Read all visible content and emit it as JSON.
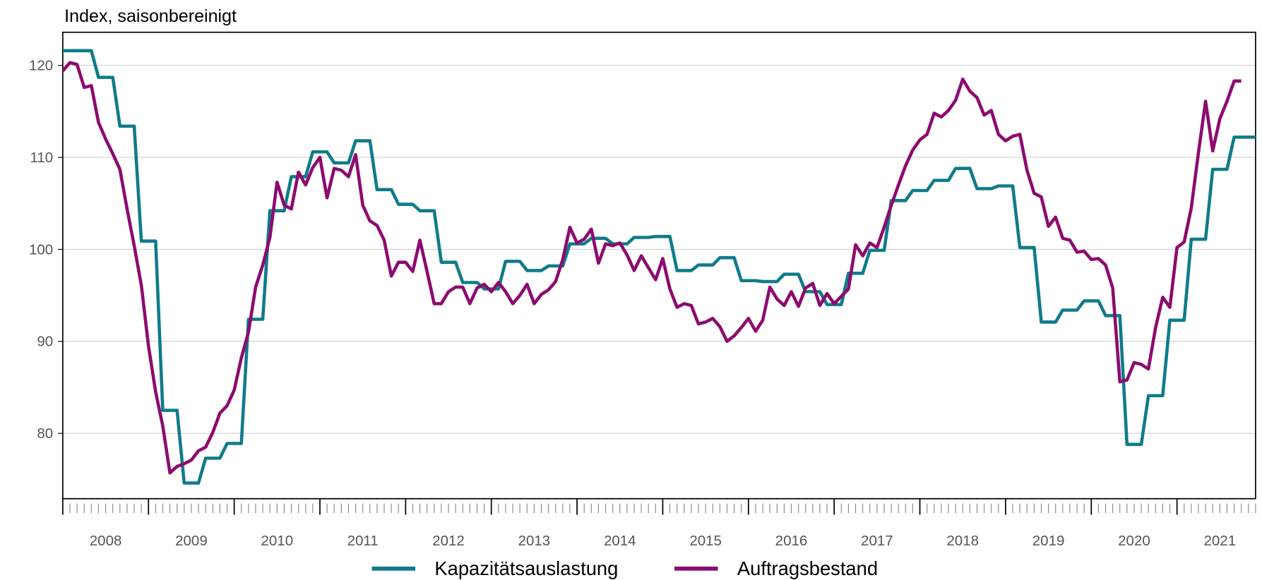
{
  "chart_data": {
    "type": "line",
    "title": "Index, saisonbereinigt",
    "x": [
      "2008-01",
      "2008-02",
      "2008-03",
      "2008-04",
      "2008-05",
      "2008-06",
      "2008-07",
      "2008-08",
      "2008-09",
      "2008-10",
      "2008-11",
      "2008-12",
      "2009-01",
      "2009-02",
      "2009-03",
      "2009-04",
      "2009-05",
      "2009-06",
      "2009-07",
      "2009-08",
      "2009-09",
      "2009-10",
      "2009-11",
      "2009-12",
      "2010-01",
      "2010-02",
      "2010-03",
      "2010-04",
      "2010-05",
      "2010-06",
      "2010-07",
      "2010-08",
      "2010-09",
      "2010-10",
      "2010-11",
      "2010-12",
      "2011-01",
      "2011-02",
      "2011-03",
      "2011-04",
      "2011-05",
      "2011-06",
      "2011-07",
      "2011-08",
      "2011-09",
      "2011-10",
      "2011-11",
      "2011-12",
      "2012-01",
      "2012-02",
      "2012-03",
      "2012-04",
      "2012-05",
      "2012-06",
      "2012-07",
      "2012-08",
      "2012-09",
      "2012-10",
      "2012-11",
      "2012-12",
      "2013-01",
      "2013-02",
      "2013-03",
      "2013-04",
      "2013-05",
      "2013-06",
      "2013-07",
      "2013-08",
      "2013-09",
      "2013-10",
      "2013-11",
      "2013-12",
      "2014-01",
      "2014-02",
      "2014-03",
      "2014-04",
      "2014-05",
      "2014-06",
      "2014-07",
      "2014-08",
      "2014-09",
      "2014-10",
      "2014-11",
      "2014-12",
      "2015-01",
      "2015-02",
      "2015-03",
      "2015-04",
      "2015-05",
      "2015-06",
      "2015-07",
      "2015-08",
      "2015-09",
      "2015-10",
      "2015-11",
      "2015-12",
      "2016-01",
      "2016-02",
      "2016-03",
      "2016-04",
      "2016-05",
      "2016-06",
      "2016-07",
      "2016-08",
      "2016-09",
      "2016-10",
      "2016-11",
      "2016-12",
      "2017-01",
      "2017-02",
      "2017-03",
      "2017-04",
      "2017-05",
      "2017-06",
      "2017-07",
      "2017-08",
      "2017-09",
      "2017-10",
      "2017-11",
      "2017-12",
      "2018-01",
      "2018-02",
      "2018-03",
      "2018-04",
      "2018-05",
      "2018-06",
      "2018-07",
      "2018-08",
      "2018-09",
      "2018-10",
      "2018-11",
      "2018-12",
      "2019-01",
      "2019-02",
      "2019-03",
      "2019-04",
      "2019-05",
      "2019-06",
      "2019-07",
      "2019-08",
      "2019-09",
      "2019-10",
      "2019-11",
      "2019-12",
      "2020-01",
      "2020-02",
      "2020-03",
      "2020-04",
      "2020-05",
      "2020-06",
      "2020-07",
      "2020-08",
      "2020-09",
      "2020-10",
      "2020-11",
      "2020-12",
      "2021-01",
      "2021-02",
      "2021-03",
      "2021-04",
      "2021-05",
      "2021-06",
      "2021-07",
      "2021-08",
      "2021-09",
      "2021-10",
      "2021-11",
      "2021-12"
    ],
    "series": [
      {
        "name": "Kapazitätsauslastung",
        "color": "#0f7b8a",
        "values": [
          121.6,
          121.6,
          121.6,
          121.6,
          121.6,
          118.7,
          118.7,
          118.7,
          113.4,
          113.4,
          113.4,
          100.9,
          100.9,
          100.9,
          82.5,
          82.5,
          82.5,
          74.6,
          74.6,
          74.6,
          77.3,
          77.3,
          77.3,
          78.9,
          78.9,
          78.9,
          92.4,
          92.4,
          92.4,
          104.2,
          104.2,
          104.2,
          107.9,
          107.9,
          107.9,
          110.6,
          110.6,
          110.6,
          109.4,
          109.4,
          109.4,
          111.8,
          111.8,
          111.8,
          106.5,
          106.5,
          106.5,
          104.9,
          104.9,
          104.9,
          104.2,
          104.2,
          104.2,
          98.6,
          98.6,
          98.6,
          96.4,
          96.4,
          96.4,
          95.7,
          95.7,
          95.7,
          98.7,
          98.7,
          98.7,
          97.7,
          97.7,
          97.7,
          98.2,
          98.2,
          98.2,
          100.6,
          100.6,
          100.6,
          101.2,
          101.2,
          101.2,
          100.6,
          100.6,
          100.6,
          101.3,
          101.3,
          101.3,
          101.4,
          101.4,
          101.4,
          97.7,
          97.7,
          97.7,
          98.3,
          98.3,
          98.3,
          99.1,
          99.1,
          99.1,
          96.6,
          96.6,
          96.6,
          96.5,
          96.5,
          96.5,
          97.3,
          97.3,
          97.3,
          95.4,
          95.4,
          95.4,
          94,
          94,
          94,
          97.4,
          97.4,
          97.4,
          99.9,
          99.9,
          99.9,
          105.3,
          105.3,
          105.3,
          106.4,
          106.4,
          106.4,
          107.5,
          107.5,
          107.5,
          108.8,
          108.8,
          108.8,
          106.6,
          106.6,
          106.6,
          106.9,
          106.9,
          106.9,
          100.2,
          100.2,
          100.2,
          92.1,
          92.1,
          92.1,
          93.4,
          93.4,
          93.4,
          94.4,
          94.4,
          94.4,
          92.8,
          92.8,
          92.8,
          78.8,
          78.8,
          78.8,
          84.1,
          84.1,
          84.1,
          92.3,
          92.3,
          92.3,
          101.1,
          101.1,
          101.1,
          108.7,
          108.7,
          108.7,
          112.2,
          112.2,
          112.2,
          112.2
        ]
      },
      {
        "name": "Auftragsbestand",
        "color": "#8c0b6f",
        "values": [
          119.4,
          120.3,
          120.1,
          117.6,
          117.8,
          113.8,
          112,
          110.4,
          108.7,
          104.4,
          100.4,
          96.1,
          89.5,
          84.5,
          80.8,
          75.7,
          76.4,
          76.7,
          77.1,
          78.1,
          78.5,
          80.1,
          82.2,
          83,
          84.7,
          88.2,
          91,
          95.9,
          98.3,
          101.3,
          107.3,
          104.8,
          104.4,
          108.4,
          107,
          108.9,
          110,
          105.6,
          108.8,
          108.6,
          107.9,
          110.3,
          104.8,
          103.1,
          102.6,
          101,
          97.1,
          98.6,
          98.6,
          97.6,
          101,
          97.6,
          94.1,
          94.1,
          95.4,
          95.9,
          95.9,
          94.1,
          95.8,
          96.2,
          95.4,
          96.4,
          95.4,
          94.1,
          95,
          96.2,
          94.1,
          95.1,
          95.6,
          96.5,
          98.9,
          102.4,
          100.7,
          101.1,
          102.2,
          98.5,
          100.6,
          100.4,
          100.7,
          99.4,
          97.7,
          99.3,
          98,
          96.7,
          99,
          95.7,
          93.7,
          94.1,
          93.9,
          91.9,
          92.1,
          92.5,
          91.6,
          90,
          90.6,
          91.5,
          92.5,
          91.1,
          92.3,
          95.9,
          94.6,
          93.9,
          95.4,
          93.8,
          95.8,
          96.3,
          93.9,
          95.2,
          94.1,
          94.9,
          95.7,
          100.5,
          99.3,
          100.7,
          100.2,
          102.4,
          104.8,
          107,
          109.1,
          110.8,
          111.9,
          112.5,
          114.8,
          114.4,
          115.1,
          116.2,
          118.5,
          117.2,
          116.5,
          114.6,
          115.1,
          112.5,
          111.8,
          112.3,
          112.5,
          108.6,
          106.1,
          105.7,
          102.5,
          103.5,
          101.2,
          101,
          99.7,
          99.8,
          98.9,
          99,
          98.3,
          95.8,
          85.6,
          85.8,
          87.7,
          87.5,
          87,
          91.5,
          94.8,
          93.7,
          100.2,
          100.8,
          104.5,
          110.5,
          116.1,
          110.7,
          114.2,
          116.1,
          118.3,
          118.3,
          null,
          null
        ]
      }
    ],
    "xlim": [
      "2008-01",
      "2021-12"
    ],
    "xticks": [
      {
        "value": "2008-07",
        "label": "2008"
      },
      {
        "value": "2009-07",
        "label": "2009"
      },
      {
        "value": "2010-07",
        "label": "2010"
      },
      {
        "value": "2011-07",
        "label": "2011"
      },
      {
        "value": "2012-07",
        "label": "2012"
      },
      {
        "value": "2013-07",
        "label": "2013"
      },
      {
        "value": "2014-07",
        "label": "2014"
      },
      {
        "value": "2015-07",
        "label": "2015"
      },
      {
        "value": "2016-07",
        "label": "2016"
      },
      {
        "value": "2017-07",
        "label": "2017"
      },
      {
        "value": "2018-07",
        "label": "2018"
      },
      {
        "value": "2019-07",
        "label": "2019"
      },
      {
        "value": "2020-07",
        "label": "2020"
      },
      {
        "value": "2021-07",
        "label": "2021"
      }
    ],
    "xticks_major": [
      "2008-01",
      "2009-01",
      "2010-01",
      "2011-01",
      "2012-01",
      "2013-01",
      "2014-01",
      "2015-01",
      "2016-01",
      "2017-01",
      "2018-01",
      "2019-01",
      "2020-01",
      "2021-01"
    ],
    "ylim": [
      72.9,
      123.6
    ],
    "yticks": [
      80,
      90,
      100,
      110,
      120
    ],
    "grid": true,
    "legend": "bottom"
  }
}
